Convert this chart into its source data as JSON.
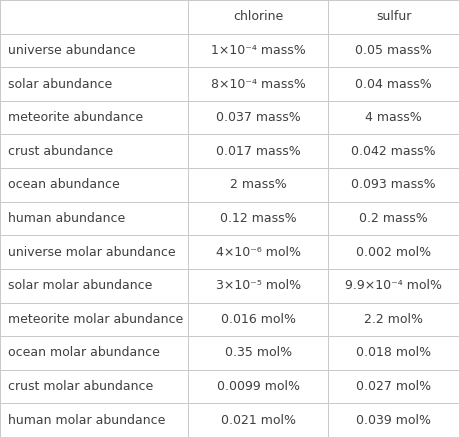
{
  "col_headers": [
    "chlorine",
    "sulfur"
  ],
  "rows": [
    [
      "universe abundance",
      "1×10⁻⁴ mass%",
      "0.05 mass%"
    ],
    [
      "solar abundance",
      "8×10⁻⁴ mass%",
      "0.04 mass%"
    ],
    [
      "meteorite abundance",
      "0.037 mass%",
      "4 mass%"
    ],
    [
      "crust abundance",
      "0.017 mass%",
      "0.042 mass%"
    ],
    [
      "ocean abundance",
      "2 mass%",
      "0.093 mass%"
    ],
    [
      "human abundance",
      "0.12 mass%",
      "0.2 mass%"
    ],
    [
      "universe molar abundance",
      "4×10⁻⁶ mol%",
      "0.002 mol%"
    ],
    [
      "solar molar abundance",
      "3×10⁻⁵ mol%",
      "9.9×10⁻⁴ mol%"
    ],
    [
      "meteorite molar abundance",
      "0.016 mol%",
      "2.2 mol%"
    ],
    [
      "ocean molar abundance",
      "0.35 mol%",
      "0.018 mol%"
    ],
    [
      "crust molar abundance",
      "0.0099 mol%",
      "0.027 mol%"
    ],
    [
      "human molar abundance",
      "0.021 mol%",
      "0.039 mol%"
    ]
  ],
  "bg_color": "#ffffff",
  "grid_color": "#c8c8c8",
  "text_color": "#404040",
  "header_text_color": "#404040",
  "figsize": [
    4.59,
    4.37
  ],
  "dpi": 100,
  "font_size": 9.0,
  "header_font_size": 9.0
}
